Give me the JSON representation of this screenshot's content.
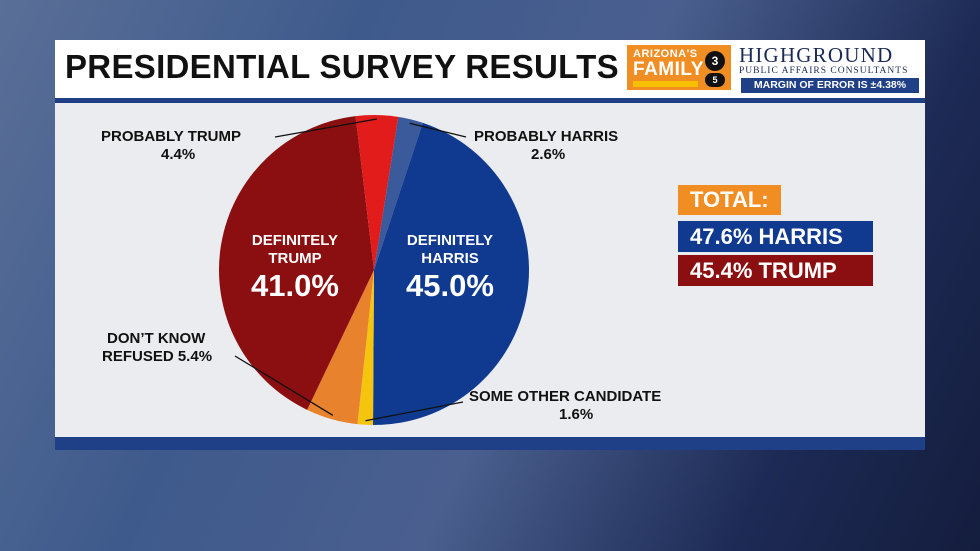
{
  "header": {
    "title": "PRESIDENTIAL SURVEY RESULTS",
    "logo_az_line1": "ARIZONA'S",
    "logo_az_line2": "FAMILY",
    "logo_az_badge": "3",
    "logo_az_badge2": "5",
    "logo_hg_line1": "HIGHGROUND",
    "logo_hg_line2": "PUBLIC AFFAIRS CONSULTANTS",
    "margin_of_error": "MARGIN OF ERROR IS ±4.38%"
  },
  "chart_data": {
    "type": "pie",
    "title": "PRESIDENTIAL SURVEY RESULTS",
    "slices": [
      {
        "name": "PROBABLY HARRIS",
        "label_line1": "PROBABLY HARRIS",
        "label_value": "2.6%",
        "value": 2.6,
        "color": "#3a5a9c"
      },
      {
        "name": "DEFINITELY HARRIS",
        "label_line1": "DEFINITELY",
        "label_line2": "HARRIS",
        "label_value": "45.0%",
        "value": 45.0,
        "color": "#0f3a8f"
      },
      {
        "name": "SOME OTHER CANDIDATE",
        "label_line1": "SOME OTHER CANDIDATE",
        "label_value": "1.6%",
        "value": 1.6,
        "color": "#f5c40f"
      },
      {
        "name": "DON'T KNOW REFUSED",
        "label_line1": "DON’T KNOW",
        "label_line2": "REFUSED 5.4%",
        "value": 5.4,
        "color": "#e8822d"
      },
      {
        "name": "DEFINITELY TRUMP",
        "label_line1": "DEFINITELY",
        "label_line2": "TRUMP",
        "label_value": "41.0%",
        "value": 41.0,
        "color": "#8b0e10"
      },
      {
        "name": "PROBABLY TRUMP",
        "label_line1": "PROBABLY TRUMP",
        "label_value": "4.4%",
        "value": 4.4,
        "color": "#e21b1b"
      }
    ],
    "totals": {
      "heading": "TOTAL:",
      "harris": "47.6% HARRIS",
      "trump": "45.4% TRUMP",
      "harris_color": "#0f3a8f",
      "trump_color": "#8b0e10",
      "heading_color": "#f08d23"
    }
  }
}
